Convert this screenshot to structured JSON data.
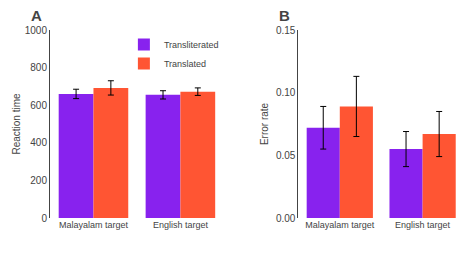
{
  "chart_data": [
    {
      "type": "bar",
      "title": "A",
      "ylabel": "Reaction time",
      "categories": [
        "Malayalam target",
        "English target"
      ],
      "series": [
        {
          "name": "Transliterated",
          "color": "#8822EE",
          "values": [
            660,
            655
          ],
          "errors": [
            25,
            22
          ]
        },
        {
          "name": "Translated",
          "color": "#FF5533",
          "values": [
            692,
            672
          ],
          "errors": [
            38,
            20
          ]
        }
      ],
      "ylim": [
        0,
        1000
      ],
      "yticks": [
        0,
        200,
        400,
        600,
        800,
        1000
      ],
      "grid": false,
      "legend": "upper right"
    },
    {
      "type": "bar",
      "title": "B",
      "ylabel": "Error rate",
      "categories": [
        "Malayalam target",
        "English target"
      ],
      "series": [
        {
          "name": "Transliterated",
          "color": "#8822EE",
          "values": [
            0.072,
            0.055
          ],
          "errors": [
            0.017,
            0.014
          ]
        },
        {
          "name": "Translated",
          "color": "#FF5533",
          "values": [
            0.089,
            0.067
          ],
          "errors": [
            0.024,
            0.018
          ]
        }
      ],
      "ylim": [
        0,
        0.15
      ],
      "yticks": [
        {
          "value": 0,
          "label": "0.00"
        },
        0.05,
        {
          "value": 0.1,
          "label": "0.10"
        },
        0.15
      ],
      "grid": false
    }
  ]
}
